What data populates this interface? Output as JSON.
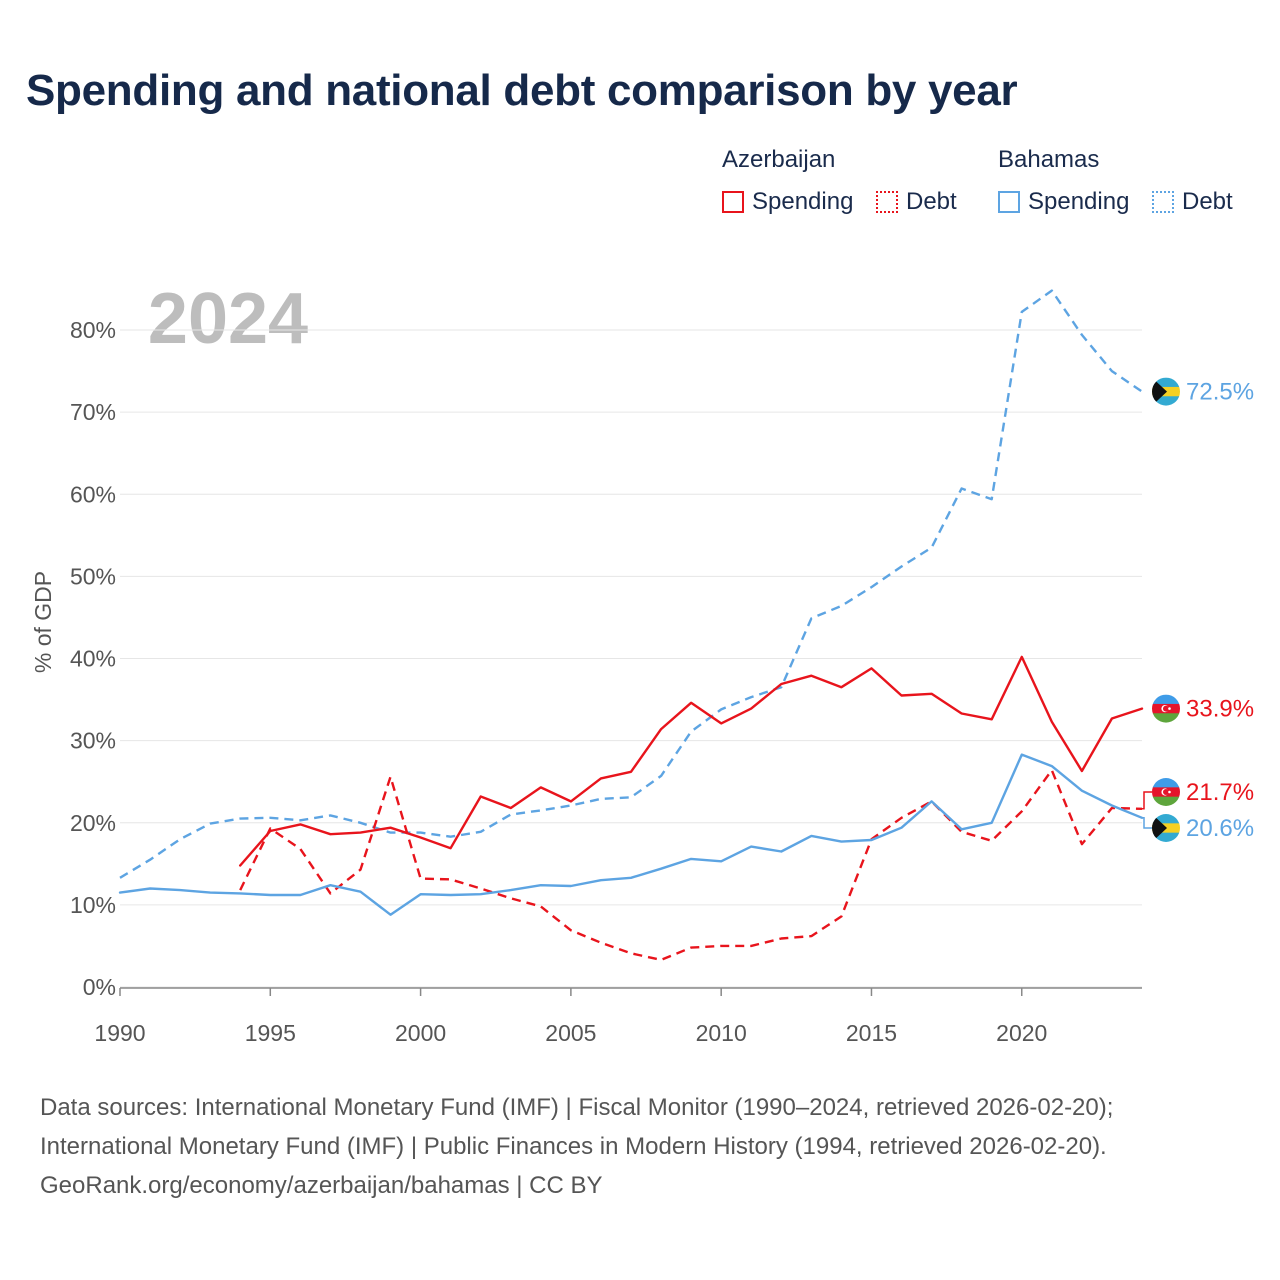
{
  "title": "Spending and national debt comparison by year",
  "legend": {
    "groups": [
      {
        "name": "Azerbaijan",
        "color": "#e8141c",
        "items": [
          {
            "label": "Spending",
            "style": "solid"
          },
          {
            "label": "Debt",
            "style": "dotted"
          }
        ]
      },
      {
        "name": "Bahamas",
        "color": "#5da4e2",
        "items": [
          {
            "label": "Spending",
            "style": "solid"
          },
          {
            "label": "Debt",
            "style": "dotted"
          }
        ]
      }
    ]
  },
  "chart_data": {
    "type": "line",
    "year_watermark": "2024",
    "ylabel": "% of GDP",
    "xlim": [
      1990,
      2024
    ],
    "ylim": [
      0,
      85
    ],
    "y_ticks": [
      0,
      10,
      20,
      30,
      40,
      50,
      60,
      70,
      80
    ],
    "y_tick_labels": [
      "0%",
      "10%",
      "20%",
      "30%",
      "40%",
      "50%",
      "60%",
      "70%",
      "80%"
    ],
    "x_ticks": [
      1990,
      1995,
      2000,
      2005,
      2010,
      2015,
      2020
    ],
    "x_tick_labels": [
      "1990",
      "1995",
      "2000",
      "2005",
      "2010",
      "2015",
      "2020"
    ],
    "series": [
      {
        "name": "Bahamas Debt",
        "country": "Bahamas",
        "metric": "Debt",
        "color": "#5da4e2",
        "dashed": true,
        "x": [
          1990,
          1991,
          1992,
          1993,
          1994,
          1995,
          1996,
          1997,
          1998,
          1999,
          2000,
          2001,
          2002,
          2003,
          2004,
          2005,
          2006,
          2007,
          2008,
          2009,
          2010,
          2011,
          2012,
          2013,
          2014,
          2015,
          2016,
          2017,
          2018,
          2019,
          2020,
          2021,
          2022,
          2023,
          2024
        ],
        "values": [
          13.3,
          15.5,
          18.0,
          19.9,
          20.5,
          20.6,
          20.3,
          20.9,
          20.0,
          18.8,
          18.8,
          18.3,
          18.9,
          21.0,
          21.5,
          22.1,
          22.9,
          23.1,
          25.7,
          31.1,
          33.8,
          35.3,
          36.5,
          44.9,
          46.4,
          48.7,
          51.2,
          53.5,
          60.7,
          59.4,
          82.2,
          84.8,
          79.4,
          75.0,
          72.5
        ]
      },
      {
        "name": "Azerbaijan Debt",
        "country": "Azerbaijan",
        "metric": "Debt",
        "color": "#e8141c",
        "dashed": true,
        "x": [
          1994,
          1995,
          1996,
          1997,
          1998,
          1999,
          2000,
          2001,
          2002,
          2003,
          2004,
          2005,
          2006,
          2007,
          2008,
          2009,
          2010,
          2011,
          2012,
          2013,
          2014,
          2015,
          2016,
          2017,
          2018,
          2019,
          2020,
          2021,
          2022,
          2023,
          2024
        ],
        "values": [
          11.8,
          19.3,
          16.8,
          11.4,
          14.3,
          25.6,
          13.2,
          13.1,
          12.0,
          10.8,
          9.8,
          6.9,
          5.4,
          4.1,
          3.3,
          4.8,
          5.0,
          5.0,
          5.9,
          6.2,
          8.6,
          18.0,
          20.6,
          22.6,
          18.9,
          17.8,
          21.4,
          26.4,
          17.4,
          21.8,
          21.7
        ]
      },
      {
        "name": "Bahamas Spending",
        "country": "Bahamas",
        "metric": "Spending",
        "color": "#5da4e2",
        "dashed": false,
        "x": [
          1990,
          1991,
          1992,
          1993,
          1994,
          1995,
          1996,
          1997,
          1998,
          1999,
          2000,
          2001,
          2002,
          2003,
          2004,
          2005,
          2006,
          2007,
          2008,
          2009,
          2010,
          2011,
          2012,
          2013,
          2014,
          2015,
          2016,
          2017,
          2018,
          2019,
          2020,
          2021,
          2022,
          2023,
          2024
        ],
        "values": [
          11.5,
          12.0,
          11.8,
          11.5,
          11.4,
          11.2,
          11.2,
          12.4,
          11.6,
          8.8,
          11.3,
          11.2,
          11.3,
          11.8,
          12.4,
          12.3,
          13.0,
          13.3,
          14.4,
          15.6,
          15.3,
          17.1,
          16.5,
          18.4,
          17.7,
          17.9,
          19.4,
          22.6,
          19.2,
          20.0,
          28.3,
          26.9,
          23.9,
          22.1,
          20.6
        ]
      },
      {
        "name": "Azerbaijan Spending",
        "country": "Azerbaijan",
        "metric": "Spending",
        "color": "#e8141c",
        "dashed": false,
        "x": [
          1994,
          1995,
          1996,
          1997,
          1998,
          1999,
          2000,
          2001,
          2002,
          2003,
          2004,
          2005,
          2006,
          2007,
          2008,
          2009,
          2010,
          2011,
          2012,
          2013,
          2014,
          2015,
          2016,
          2017,
          2018,
          2019,
          2020,
          2021,
          2022,
          2023,
          2024
        ],
        "values": [
          14.8,
          19.0,
          19.8,
          18.6,
          18.8,
          19.4,
          18.2,
          16.9,
          23.2,
          21.8,
          24.3,
          22.6,
          25.4,
          26.2,
          31.4,
          34.6,
          32.1,
          33.9,
          36.9,
          37.9,
          36.5,
          38.8,
          35.5,
          35.7,
          33.3,
          32.6,
          40.2,
          32.3,
          26.3,
          32.7,
          33.9
        ]
      }
    ],
    "end_labels": [
      {
        "label": "72.5%",
        "country": "Bahamas",
        "value": 72.5,
        "color": "#5da4e2"
      },
      {
        "label": "33.9%",
        "country": "Azerbaijan",
        "value": 33.9,
        "color": "#e8141c"
      },
      {
        "label": "21.7%",
        "country": "Azerbaijan",
        "value": 21.7,
        "color": "#e8141c"
      },
      {
        "label": "20.6%",
        "country": "Bahamas",
        "value": 20.6,
        "color": "#5da4e2"
      }
    ]
  },
  "footer": {
    "line1": "Data sources: International Monetary Fund (IMF) | Fiscal Monitor (1990–2024, retrieved 2026-02-20);",
    "line2": "International Monetary Fund (IMF) | Public Finances in Modern History (1994, retrieved 2026-02-20).",
    "line3": "GeoRank.org/economy/azerbaijan/bahamas | CC BY"
  }
}
